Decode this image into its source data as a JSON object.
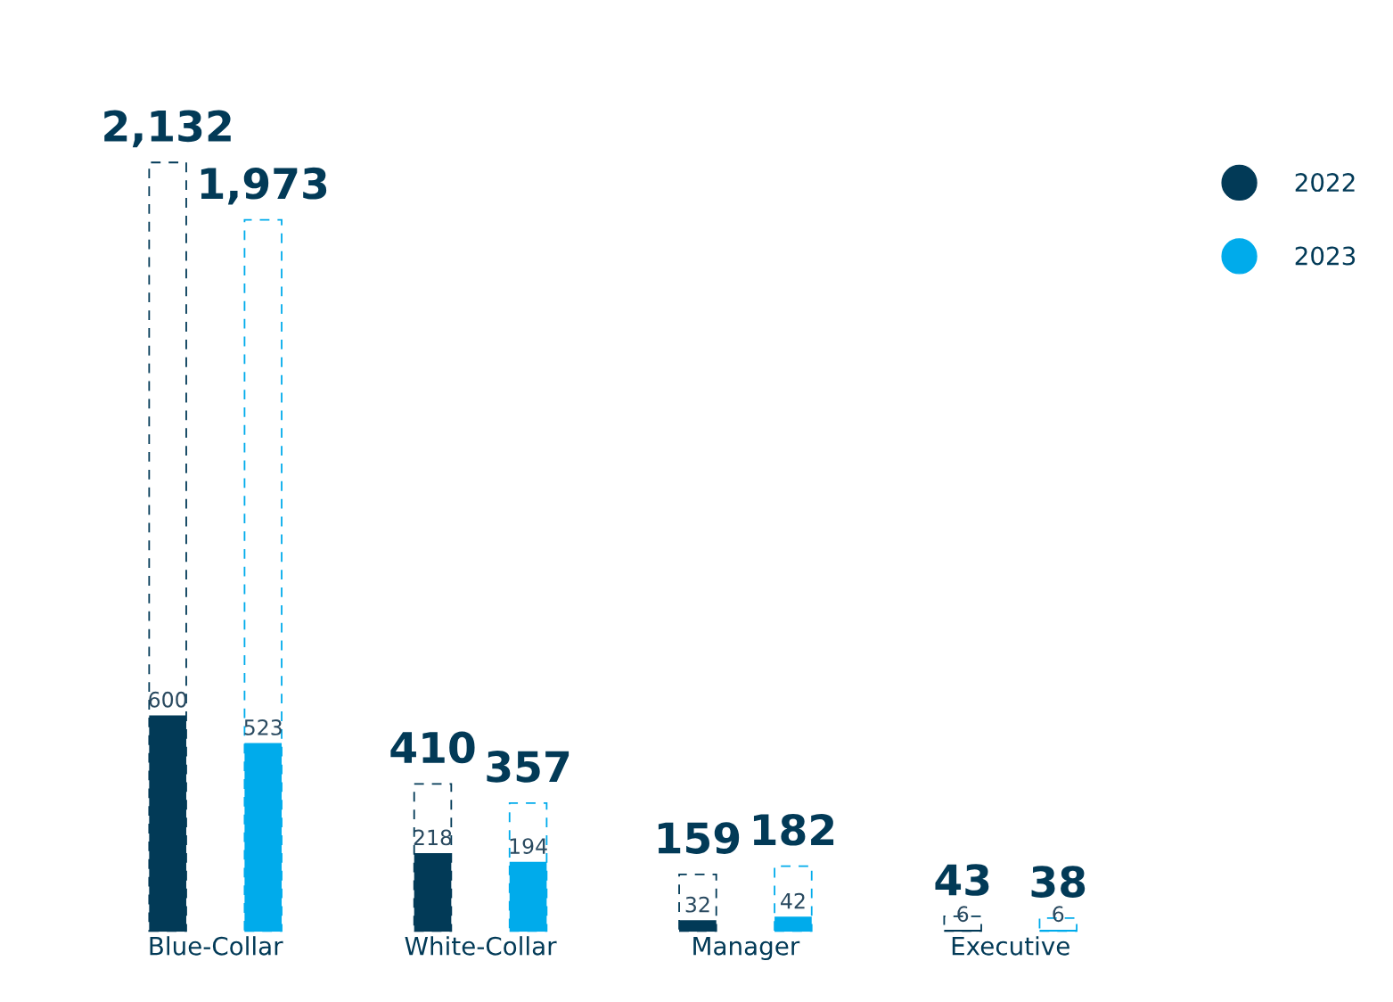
{
  "chart_data": {
    "type": "bar",
    "categories": [
      "Blue-Collar",
      "White-Collar",
      "Manager",
      "Executive"
    ],
    "series": [
      {
        "name": "2022",
        "color": "#023a57",
        "line_style": "dashed",
        "values": [
          2132,
          410,
          159,
          43
        ],
        "value_labels": [
          "2,132",
          "410",
          "159",
          "43"
        ]
      },
      {
        "color": "#023a57",
        "values": [
          600,
          218,
          32,
          6
        ],
        "value_labels": [
          "600",
          "218",
          "32",
          "6"
        ]
      },
      {
        "name": "2023",
        "color": "#00abeb",
        "line_style": "dashed",
        "values": [
          1973,
          357,
          182,
          38
        ],
        "value_labels": [
          "1,973",
          "357",
          "182",
          "38"
        ]
      },
      {
        "color": "#00abeb",
        "values": [
          523,
          194,
          42,
          6
        ],
        "value_labels": [
          "523",
          "194",
          "42",
          "6"
        ]
      }
    ],
    "legend": "top right",
    "grid": false
  }
}
